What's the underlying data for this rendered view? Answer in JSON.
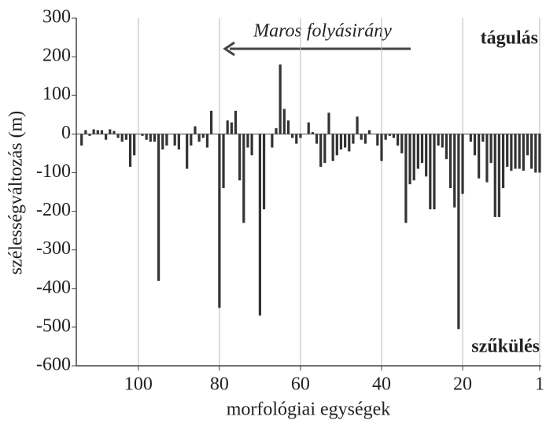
{
  "chart_data": {
    "type": "bar",
    "y_label": "szélességváltozás (m)",
    "x_label": "morfológiai egységek",
    "annotations": [
      "Maros folyásirány",
      "tágulás",
      "szűkülés"
    ],
    "x": [
      114,
      113,
      112,
      111,
      110,
      109,
      108,
      107,
      106,
      105,
      104,
      103,
      102,
      101,
      100,
      99,
      98,
      97,
      96,
      95,
      94,
      93,
      92,
      91,
      90,
      89,
      88,
      87,
      86,
      85,
      84,
      83,
      82,
      81,
      80,
      79,
      78,
      77,
      76,
      75,
      74,
      73,
      72,
      71,
      70,
      69,
      68,
      67,
      66,
      65,
      64,
      63,
      62,
      61,
      60,
      59,
      58,
      57,
      56,
      55,
      54,
      53,
      52,
      51,
      50,
      49,
      48,
      47,
      46,
      45,
      44,
      43,
      42,
      41,
      40,
      39,
      38,
      37,
      36,
      35,
      34,
      33,
      32,
      31,
      30,
      29,
      28,
      27,
      26,
      25,
      24,
      23,
      22,
      21,
      20,
      19,
      18,
      17,
      16,
      15,
      14,
      13,
      12,
      11,
      10,
      9,
      8,
      7,
      6,
      5,
      4,
      3,
      2,
      1
    ],
    "values": [
      -30,
      10,
      -5,
      12,
      10,
      10,
      -15,
      12,
      8,
      -10,
      -20,
      -15,
      -85,
      -55,
      0,
      -5,
      -15,
      -20,
      -20,
      -380,
      -40,
      -30,
      0,
      -30,
      -40,
      0,
      -90,
      -30,
      20,
      -20,
      -10,
      -35,
      60,
      0,
      -450,
      -140,
      35,
      30,
      60,
      -120,
      -230,
      -35,
      -55,
      0,
      -470,
      -195,
      0,
      -35,
      15,
      180,
      65,
      35,
      -10,
      -25,
      -10,
      0,
      30,
      5,
      -25,
      -85,
      -75,
      55,
      -70,
      -55,
      -40,
      -35,
      -45,
      -25,
      45,
      -15,
      -25,
      10,
      0,
      -30,
      -70,
      -15,
      -5,
      -10,
      -30,
      -50,
      -230,
      -130,
      -120,
      -90,
      -75,
      -110,
      -195,
      -195,
      -30,
      -35,
      -65,
      -140,
      -190,
      -505,
      -155,
      0,
      -20,
      -55,
      -115,
      -20,
      -125,
      -75,
      -215,
      -215,
      -140,
      -85,
      -95,
      -90,
      -90,
      -95,
      -55,
      -90,
      -100,
      -100
    ],
    "color": "#333333",
    "xlim": [
      115.3,
      0.6
    ],
    "xticks": [
      100,
      80,
      60,
      40,
      20,
      1
    ],
    "ylim": [
      -600,
      300
    ],
    "yticks": [
      300,
      200,
      100,
      0,
      -100,
      -200,
      -300,
      -400,
      -500,
      -600
    ],
    "grid": "x"
  }
}
